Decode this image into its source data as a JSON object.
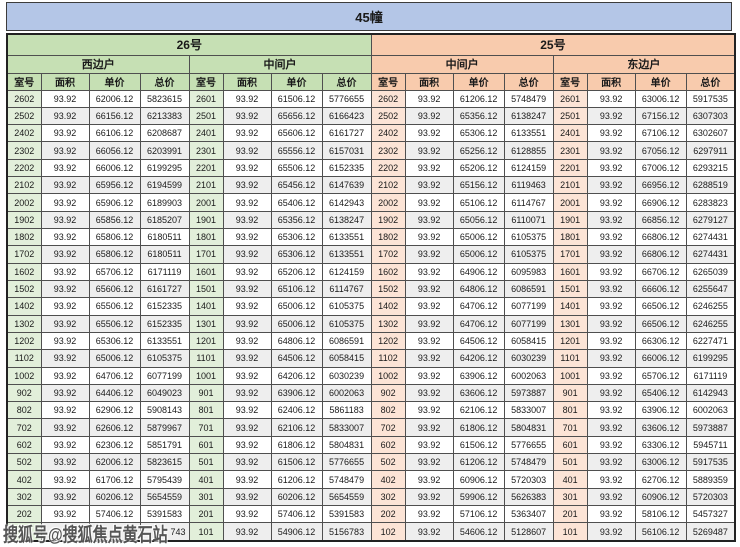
{
  "title": "45幢",
  "watermark": "搜狐号@搜狐焦点黄石站",
  "colors": {
    "title_bg": "#b4c6e7",
    "group_green": "#c6e0b4",
    "group_orange": "#f8cbad",
    "room_green": "#e2efda",
    "room_orange": "#fce4d6",
    "row_alt": "#eeeeee",
    "border": "#4f4f4f"
  },
  "buildings": [
    {
      "label": "26号"
    },
    {
      "label": "25号"
    }
  ],
  "unit_types": [
    {
      "label": "西边户",
      "building": "26号"
    },
    {
      "label": "中间户",
      "building": "26号"
    },
    {
      "label": "中间户",
      "building": "25号"
    },
    {
      "label": "东边户",
      "building": "25号"
    }
  ],
  "column_headers": [
    "室号",
    "面积",
    "单价",
    "总价"
  ],
  "rows": [
    [
      "2602",
      "93.92",
      "62006.12",
      "5823615",
      "2601",
      "93.92",
      "61506.12",
      "5776655",
      "2602",
      "93.92",
      "61206.12",
      "5748479",
      "2601",
      "93.92",
      "63006.12",
      "5917535"
    ],
    [
      "2502",
      "93.92",
      "66156.12",
      "6213383",
      "2501",
      "93.92",
      "65656.12",
      "6166423",
      "2502",
      "93.92",
      "65356.12",
      "6138247",
      "2501",
      "93.92",
      "67156.12",
      "6307303"
    ],
    [
      "2402",
      "93.92",
      "66106.12",
      "6208687",
      "2401",
      "93.92",
      "65606.12",
      "6161727",
      "2402",
      "93.92",
      "65306.12",
      "6133551",
      "2401",
      "93.92",
      "67106.12",
      "6302607"
    ],
    [
      "2302",
      "93.92",
      "66056.12",
      "6203991",
      "2301",
      "93.92",
      "65556.12",
      "6157031",
      "2302",
      "93.92",
      "65256.12",
      "6128855",
      "2301",
      "93.92",
      "67056.12",
      "6297911"
    ],
    [
      "2202",
      "93.92",
      "66006.12",
      "6199295",
      "2201",
      "93.92",
      "65506.12",
      "6152335",
      "2202",
      "93.92",
      "65206.12",
      "6124159",
      "2201",
      "93.92",
      "67006.12",
      "6293215"
    ],
    [
      "2102",
      "93.92",
      "65956.12",
      "6194599",
      "2101",
      "93.92",
      "65456.12",
      "6147639",
      "2102",
      "93.92",
      "65156.12",
      "6119463",
      "2101",
      "93.92",
      "66956.12",
      "6288519"
    ],
    [
      "2002",
      "93.92",
      "65906.12",
      "6189903",
      "2001",
      "93.92",
      "65406.12",
      "6142943",
      "2002",
      "93.92",
      "65106.12",
      "6114767",
      "2001",
      "93.92",
      "66906.12",
      "6283823"
    ],
    [
      "1902",
      "93.92",
      "65856.12",
      "6185207",
      "1901",
      "93.92",
      "65356.12",
      "6138247",
      "1902",
      "93.92",
      "65056.12",
      "6110071",
      "1901",
      "93.92",
      "66856.12",
      "6279127"
    ],
    [
      "1802",
      "93.92",
      "65806.12",
      "6180511",
      "1801",
      "93.92",
      "65306.12",
      "6133551",
      "1802",
      "93.92",
      "65006.12",
      "6105375",
      "1801",
      "93.92",
      "66806.12",
      "6274431"
    ],
    [
      "1702",
      "93.92",
      "65806.12",
      "6180511",
      "1701",
      "93.92",
      "65306.12",
      "6133551",
      "1702",
      "93.92",
      "65006.12",
      "6105375",
      "1701",
      "93.92",
      "66806.12",
      "6274431"
    ],
    [
      "1602",
      "93.92",
      "65706.12",
      "6171119",
      "1601",
      "93.92",
      "65206.12",
      "6124159",
      "1602",
      "93.92",
      "64906.12",
      "6095983",
      "1601",
      "93.92",
      "66706.12",
      "6265039"
    ],
    [
      "1502",
      "93.92",
      "65606.12",
      "6161727",
      "1501",
      "93.92",
      "65106.12",
      "6114767",
      "1502",
      "93.92",
      "64806.12",
      "6086591",
      "1501",
      "93.92",
      "66606.12",
      "6255647"
    ],
    [
      "1402",
      "93.92",
      "65506.12",
      "6152335",
      "1401",
      "93.92",
      "65006.12",
      "6105375",
      "1402",
      "93.92",
      "64706.12",
      "6077199",
      "1401",
      "93.92",
      "66506.12",
      "6246255"
    ],
    [
      "1302",
      "93.92",
      "65506.12",
      "6152335",
      "1301",
      "93.92",
      "65006.12",
      "6105375",
      "1302",
      "93.92",
      "64706.12",
      "6077199",
      "1301",
      "93.92",
      "66506.12",
      "6246255"
    ],
    [
      "1202",
      "93.92",
      "65306.12",
      "6133551",
      "1201",
      "93.92",
      "64806.12",
      "6086591",
      "1202",
      "93.92",
      "64506.12",
      "6058415",
      "1201",
      "93.92",
      "66306.12",
      "6227471"
    ],
    [
      "1102",
      "93.92",
      "65006.12",
      "6105375",
      "1101",
      "93.92",
      "64506.12",
      "6058415",
      "1102",
      "93.92",
      "64206.12",
      "6030239",
      "1101",
      "93.92",
      "66006.12",
      "6199295"
    ],
    [
      "1002",
      "93.92",
      "64706.12",
      "6077199",
      "1001",
      "93.92",
      "64206.12",
      "6030239",
      "1002",
      "93.92",
      "63906.12",
      "6002063",
      "1001",
      "93.92",
      "65706.12",
      "6171119"
    ],
    [
      "902",
      "93.92",
      "64406.12",
      "6049023",
      "901",
      "93.92",
      "63906.12",
      "6002063",
      "902",
      "93.92",
      "63606.12",
      "5973887",
      "901",
      "93.92",
      "65406.12",
      "6142943"
    ],
    [
      "802",
      "93.92",
      "62906.12",
      "5908143",
      "801",
      "93.92",
      "62406.12",
      "5861183",
      "802",
      "93.92",
      "62106.12",
      "5833007",
      "801",
      "93.92",
      "63906.12",
      "6002063"
    ],
    [
      "702",
      "93.92",
      "62606.12",
      "5879967",
      "701",
      "93.92",
      "62106.12",
      "5833007",
      "702",
      "93.92",
      "61806.12",
      "5804831",
      "701",
      "93.92",
      "63606.12",
      "5973887"
    ],
    [
      "602",
      "93.92",
      "62306.12",
      "5851791",
      "601",
      "93.92",
      "61806.12",
      "5804831",
      "602",
      "93.92",
      "61506.12",
      "5776655",
      "601",
      "93.92",
      "63306.12",
      "5945711"
    ],
    [
      "502",
      "93.92",
      "62006.12",
      "5823615",
      "501",
      "93.92",
      "61506.12",
      "5776655",
      "502",
      "93.92",
      "61206.12",
      "5748479",
      "501",
      "93.92",
      "63006.12",
      "5917535"
    ],
    [
      "402",
      "93.92",
      "61706.12",
      "5795439",
      "401",
      "93.92",
      "61206.12",
      "5748479",
      "402",
      "93.92",
      "60906.12",
      "5720303",
      "401",
      "93.92",
      "62706.12",
      "5889359"
    ],
    [
      "302",
      "93.92",
      "60206.12",
      "5654559",
      "301",
      "93.92",
      "60206.12",
      "5654559",
      "302",
      "93.92",
      "59906.12",
      "5626383",
      "301",
      "93.92",
      "60906.12",
      "5720303"
    ],
    [
      "202",
      "93.92",
      "57406.12",
      "5391583",
      "201",
      "93.92",
      "57406.12",
      "5391583",
      "202",
      "93.92",
      "57106.12",
      "5363407",
      "201",
      "93.92",
      "58106.12",
      "5457327"
    ],
    [
      "",
      "",
      "",
      "743",
      "101",
      "93.92",
      "54906.12",
      "5156783",
      "102",
      "93.92",
      "54606.12",
      "5128607",
      "101",
      "93.92",
      "56106.12",
      "5269487"
    ]
  ]
}
